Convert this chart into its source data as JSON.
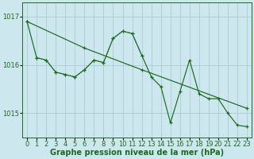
{
  "title": "Graphe pression niveau de la mer (hPa)",
  "background_color": "#cce8ee",
  "grid_color": "#aaccd4",
  "line_color": "#1a6b1a",
  "xlim": [
    -0.5,
    23.5
  ],
  "ylim": [
    1014.5,
    1017.3
  ],
  "yticks": [
    1015,
    1016,
    1017
  ],
  "xticks": [
    0,
    1,
    2,
    3,
    4,
    5,
    6,
    7,
    8,
    9,
    10,
    11,
    12,
    13,
    14,
    15,
    16,
    17,
    18,
    19,
    20,
    21,
    22,
    23
  ],
  "series_volatile_x": [
    0,
    1,
    2,
    3,
    4,
    5,
    6,
    7,
    8,
    9,
    10,
    11,
    12,
    13,
    14,
    15,
    16,
    17,
    18,
    19,
    20,
    21,
    22,
    23
  ],
  "series_volatile_y": [
    1016.9,
    1016.15,
    1016.1,
    1015.85,
    1015.8,
    1015.75,
    1015.9,
    1016.1,
    1016.05,
    1016.55,
    1016.7,
    1016.65,
    1016.2,
    1015.75,
    1015.55,
    1014.8,
    1015.45,
    1016.1,
    1015.4,
    1015.3,
    1015.3,
    1015.0,
    1014.75,
    1014.72
  ],
  "series_trend_x": [
    0,
    6,
    12,
    23
  ],
  "series_trend_y": [
    1016.9,
    1016.35,
    1015.9,
    1015.1
  ],
  "series_smooth_x": [
    1,
    2,
    3,
    4,
    5,
    6,
    7,
    8,
    9,
    10,
    11,
    12
  ],
  "series_smooth_y": [
    1016.15,
    1016.1,
    1015.85,
    1015.8,
    1015.75,
    1015.9,
    1016.1,
    1016.05,
    1016.55,
    1016.7,
    1016.65,
    1016.2
  ],
  "xlabel_fontsize": 7,
  "tick_fontsize": 6
}
